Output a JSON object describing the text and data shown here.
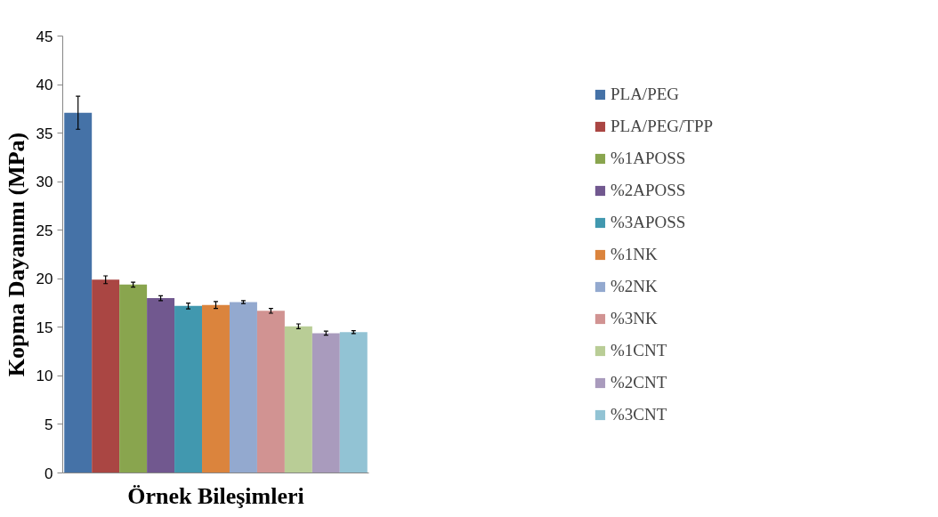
{
  "chart_data": {
    "type": "bar",
    "xlabel": "Örnek Bileşimleri",
    "ylabel": "Kopma Dayanımı (MPa)",
    "categories": [
      null
    ],
    "ylim": [
      0,
      45
    ],
    "yticks": [
      0,
      5,
      10,
      15,
      20,
      25,
      30,
      35,
      40,
      45
    ],
    "grid": false,
    "legend": "right",
    "series": [
      {
        "name": "PLA/PEG",
        "color": "#4572a7",
        "values": [
          37.1
        ],
        "errors": [
          1.7
        ]
      },
      {
        "name": "PLA/PEG/TPP",
        "color": "#aa4643",
        "values": [
          19.9
        ],
        "errors": [
          0.4
        ]
      },
      {
        "name": "%1APOSS",
        "color": "#89a54e",
        "values": [
          19.4
        ],
        "errors": [
          0.25
        ]
      },
      {
        "name": "%2APOSS",
        "color": "#71588f",
        "values": [
          18.0
        ],
        "errors": [
          0.25
        ]
      },
      {
        "name": "%3APOSS",
        "color": "#4198af",
        "values": [
          17.2
        ],
        "errors": [
          0.3
        ]
      },
      {
        "name": "%1NK",
        "color": "#db843d",
        "values": [
          17.3
        ],
        "errors": [
          0.35
        ]
      },
      {
        "name": "%2NK",
        "color": "#93a9cf",
        "values": [
          17.6
        ],
        "errors": [
          0.15
        ]
      },
      {
        "name": "%3NK",
        "color": "#d19392",
        "values": [
          16.7
        ],
        "errors": [
          0.25
        ]
      },
      {
        "name": "%1CNT",
        "color": "#b9cd96",
        "values": [
          15.1
        ],
        "errors": [
          0.25
        ]
      },
      {
        "name": "%2CNT",
        "color": "#a99bbd",
        "values": [
          14.4
        ],
        "errors": [
          0.2
        ]
      },
      {
        "name": "%3CNT",
        "color": "#92c3d4",
        "values": [
          14.5
        ],
        "errors": [
          0.15
        ]
      }
    ]
  }
}
